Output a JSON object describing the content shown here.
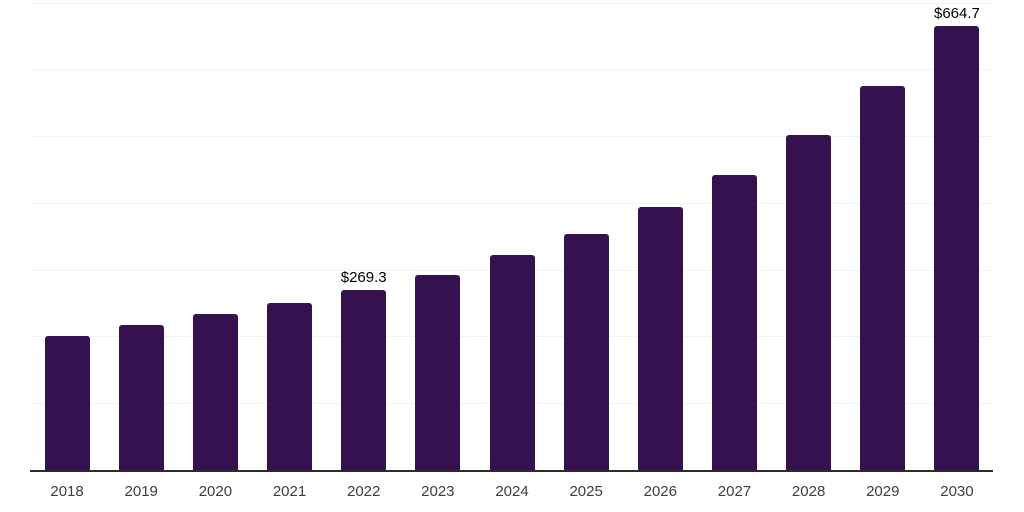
{
  "chart_data": {
    "type": "bar",
    "title": "",
    "categories": [
      "2018",
      "2019",
      "2020",
      "2021",
      "2022",
      "2023",
      "2024",
      "2025",
      "2026",
      "2027",
      "2028",
      "2029",
      "2030"
    ],
    "values": [
      200.4,
      217.4,
      233.4,
      249.4,
      269.3,
      292.8,
      322.0,
      354.0,
      393.8,
      442.2,
      501.0,
      575.4,
      664.7
    ],
    "data_labels": [
      {
        "index": 4,
        "text": "$269.3"
      },
      {
        "index": 12,
        "text": "$664.7"
      }
    ],
    "xlabel": "",
    "ylabel": "",
    "ylim": [
      0,
      700
    ],
    "gridline_step": 100,
    "grid": "horizontal",
    "y_tick_labels_visible": false,
    "legend": "none",
    "colors": {
      "bar": "#361150",
      "gridline": "#f2f2f2",
      "axis": "#2b2b2b",
      "tick_label": "#3d3d3d",
      "value_label": "#000000",
      "background": "#ffffff"
    }
  }
}
